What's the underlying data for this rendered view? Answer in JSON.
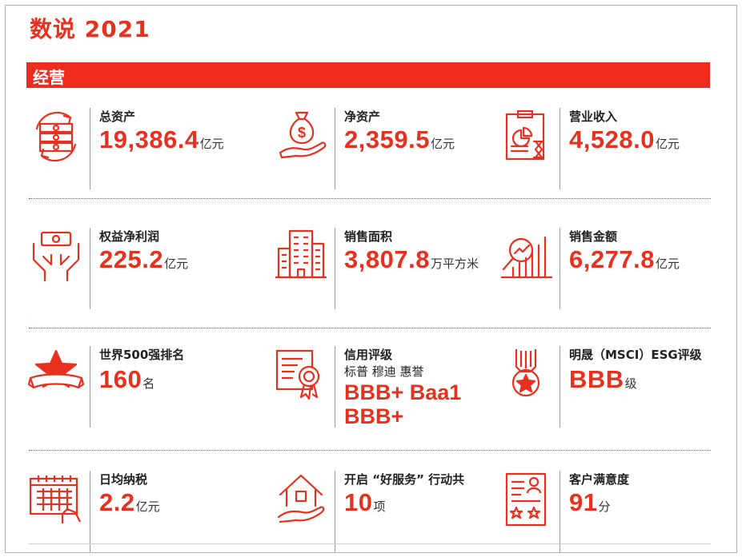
{
  "page": {
    "title": "数说 2021"
  },
  "section": {
    "label": "经营"
  },
  "colors": {
    "accent": "#e8301e",
    "band": "#ee2b1c"
  },
  "stats": {
    "total_assets": {
      "icon": "money-cycle-icon",
      "label": "总资产",
      "value": "19,386.4",
      "unit": "亿元"
    },
    "net_assets": {
      "icon": "money-bag-hand-icon",
      "label": "净资产",
      "value": "2,359.5",
      "unit": "亿元"
    },
    "revenue": {
      "icon": "clipboard-chart-hourglass-icon",
      "label": "营业收入",
      "value": "4,528.0",
      "unit": "亿元"
    },
    "net_profit": {
      "icon": "hands-banknote-icon",
      "label": "权益净利润",
      "value": "225.2",
      "unit": "亿元"
    },
    "sales_area": {
      "icon": "buildings-icon",
      "label": "销售面积",
      "value": "3,807.8",
      "unit": "万平方米"
    },
    "sales_amount": {
      "icon": "bar-chart-magnifier-icon",
      "label": "销售金额",
      "value": "6,277.8",
      "unit": "亿元"
    },
    "fortune500": {
      "icon": "star-ribbon-icon",
      "label": "世界500强排名",
      "value": "160",
      "unit": "名"
    },
    "credit_rating": {
      "icon": "certificate-icon",
      "label": "信用评级",
      "agencies": "标普 穆迪 惠誉",
      "line1": "BBB+ Baa1",
      "line2": "BBB+"
    },
    "esg_rating": {
      "icon": "medal-icon",
      "label": "明晟（MSCI）ESG评级",
      "value": "BBB",
      "unit": "级"
    },
    "daily_tax": {
      "icon": "calendar-hand-icon",
      "label": "日均纳税",
      "value": "2.2",
      "unit": "亿元"
    },
    "good_service": {
      "icon": "house-hand-icon",
      "label": "开启 “好服务” 行动共",
      "value": "10",
      "unit": "项"
    },
    "satisfaction": {
      "icon": "document-stars-icon",
      "label": "客户满意度",
      "value": "91",
      "unit": "分"
    }
  }
}
